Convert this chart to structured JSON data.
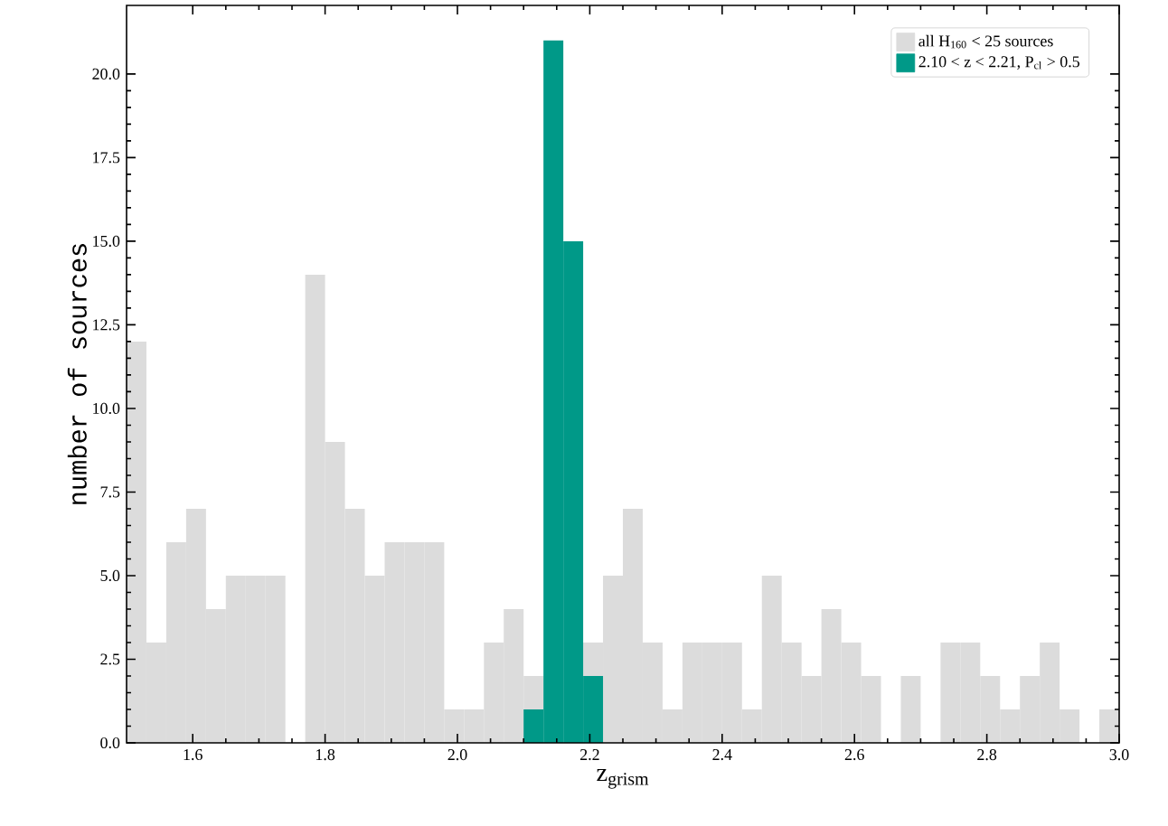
{
  "chart_data": {
    "type": "histogram",
    "xlabel": "z$_{grism}$",
    "ylabel": "number of sources",
    "bins": [
      1.5,
      1.53,
      1.56,
      1.59,
      1.62,
      1.65,
      1.68,
      1.71,
      1.74,
      1.77,
      1.8,
      1.83,
      1.86,
      1.89,
      1.92,
      1.95,
      1.98,
      2.01,
      2.04,
      2.07,
      2.1,
      2.13,
      2.16,
      2.19,
      2.22,
      2.25,
      2.28,
      2.31,
      2.34,
      2.37,
      2.4,
      2.43,
      2.46,
      2.49,
      2.52,
      2.55,
      2.58,
      2.61,
      2.64,
      2.67,
      2.7,
      2.73,
      2.76,
      2.79,
      2.82,
      2.85,
      2.88,
      2.91,
      2.94,
      2.97,
      3.0
    ],
    "series": [
      {
        "name": "all H$_{160}$ < 25 sources",
        "color": "#dcdcdc",
        "values": [
          12,
          3,
          6,
          7,
          4,
          5,
          5,
          5,
          0,
          14,
          9,
          7,
          5,
          6,
          6,
          6,
          1,
          1,
          3,
          4,
          2,
          null,
          null,
          3,
          5,
          7,
          3,
          1,
          3,
          3,
          3,
          1,
          5,
          3,
          2,
          4,
          3,
          2,
          0,
          2,
          0,
          3,
          3,
          2,
          1,
          2,
          3,
          1,
          0,
          1
        ]
      },
      {
        "name": "2.10 < z < 2.21, P$_{cl}$ > 0.5",
        "color": "#009988",
        "values": [
          null,
          null,
          null,
          null,
          null,
          null,
          null,
          null,
          null,
          null,
          null,
          null,
          null,
          null,
          null,
          null,
          null,
          null,
          null,
          null,
          1,
          21,
          15,
          2,
          null,
          null,
          null,
          null,
          null,
          null,
          null,
          null,
          null,
          null,
          null,
          null,
          null,
          null,
          null,
          null,
          null,
          null,
          null,
          null,
          null,
          null,
          null,
          null,
          null,
          null
        ]
      }
    ],
    "xlim": [
      1.5,
      3.0
    ],
    "ylim": [
      0,
      22.05
    ],
    "xticks": [
      {
        "value": 1.6,
        "label": "1.6"
      },
      {
        "value": 1.8,
        "label": "1.8"
      },
      {
        "value": 2.0,
        "label": "2.0"
      },
      {
        "value": 2.2,
        "label": "2.2"
      },
      {
        "value": 2.4,
        "label": "2.4"
      },
      {
        "value": 2.6,
        "label": "2.6"
      },
      {
        "value": 2.8,
        "label": "2.8"
      },
      {
        "value": 3.0,
        "label": "3.0"
      }
    ],
    "yticks": [
      {
        "value": 0,
        "label": "0.0"
      },
      {
        "value": 2.5,
        "label": "2.5"
      },
      {
        "value": 5,
        "label": "5.0"
      },
      {
        "value": 7.5,
        "label": "7.5"
      },
      {
        "value": 10,
        "label": "10.0"
      },
      {
        "value": 12.5,
        "label": "12.5"
      },
      {
        "value": 15,
        "label": "15.0"
      },
      {
        "value": 17.5,
        "label": "17.5"
      },
      {
        "value": 20,
        "label": "20.0"
      }
    ],
    "legend": "top right",
    "grid": false
  }
}
